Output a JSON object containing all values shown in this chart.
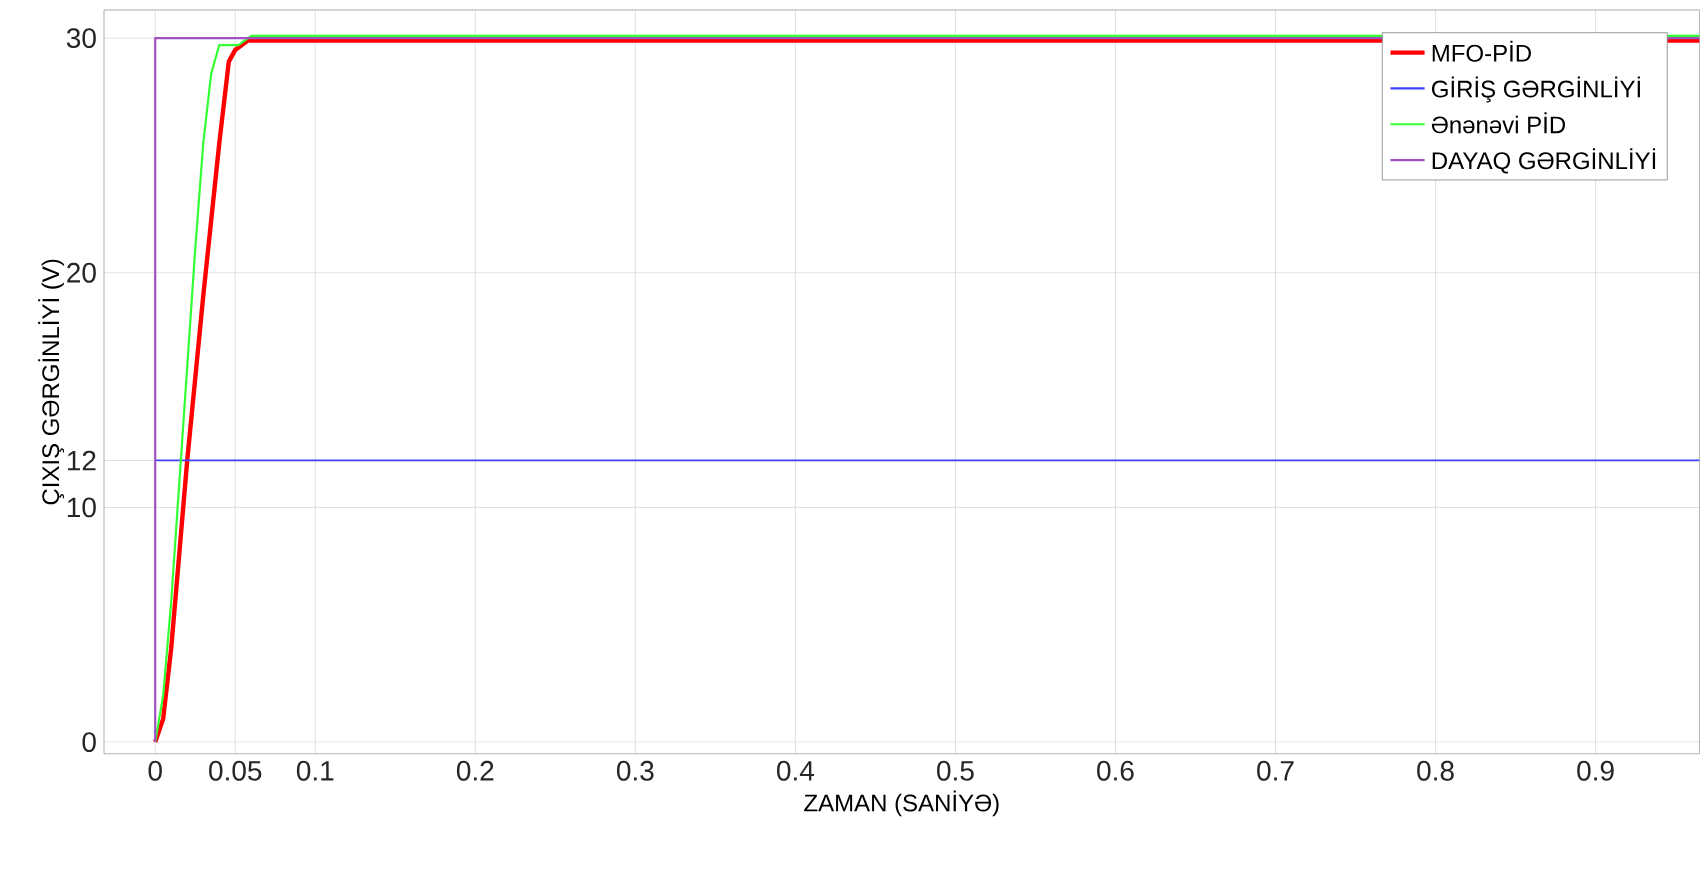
{
  "chart_data": {
    "type": "line",
    "xlabel": "ZAMAN (SANİYƏ)",
    "ylabel": "ÇIXIŞ GƏRGİNLİYİ (V)",
    "xlim": [
      -0.032,
      0.965
    ],
    "ylim": [
      -0.5,
      31.2
    ],
    "xticks": [
      0,
      0.05,
      0.1,
      0.2,
      0.3,
      0.4,
      0.5,
      0.6,
      0.7,
      0.8,
      0.9
    ],
    "yticks": [
      0,
      10,
      12,
      20,
      30
    ],
    "grid": true,
    "legend": "top right",
    "marker": "none",
    "line_style": "solid",
    "series": [
      {
        "name": "MFO-PİD",
        "color": "#ff0000",
        "x": [
          0,
          0.005,
          0.01,
          0.015,
          0.02,
          0.03,
          0.04,
          0.046,
          0.05,
          0.058,
          0.965
        ],
        "values": [
          0,
          1,
          4,
          8,
          12,
          19,
          25.5,
          29,
          29.5,
          29.9,
          29.9
        ]
      },
      {
        "name": "GİRİŞ GƏRGİNLİYİ",
        "color": "#4040ff",
        "x": [
          0,
          0.965
        ],
        "values": [
          12,
          12
        ]
      },
      {
        "name": "Ənənəvi PİD",
        "color": "#33ff33",
        "x": [
          0,
          0.005,
          0.01,
          0.015,
          0.02,
          0.025,
          0.03,
          0.035,
          0.04,
          0.052,
          0.06,
          0.965
        ],
        "values": [
          0,
          2,
          6,
          11,
          16,
          21,
          25.5,
          28.5,
          29.7,
          29.7,
          30.1,
          30.1
        ]
      },
      {
        "name": "DAYAQ GƏRGİNLİYİ",
        "color": "#a050c0",
        "x": [
          0,
          0,
          0.965
        ],
        "values": [
          0,
          30,
          30
        ]
      }
    ]
  }
}
